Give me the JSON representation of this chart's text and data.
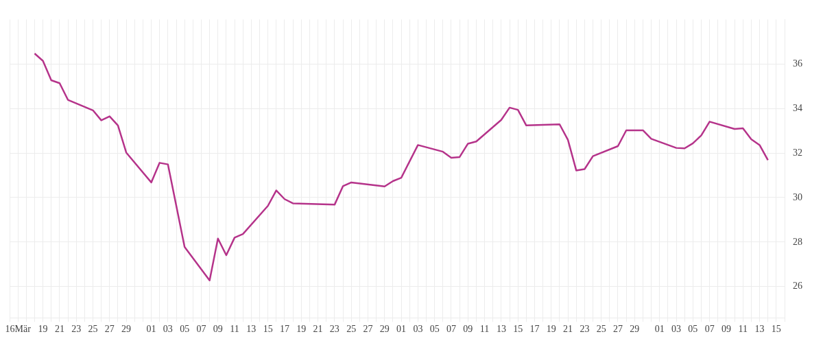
{
  "chart_data": {
    "type": "line",
    "x": [
      "--03-18",
      "--03-19",
      "--03-20",
      "--03-21",
      "--03-22",
      "--03-25",
      "--03-26",
      "--03-27",
      "--03-28",
      "--03-29",
      "--04-01",
      "--04-02",
      "--04-03",
      "--04-05",
      "--04-08",
      "--04-09",
      "--04-10",
      "--04-11",
      "--04-12",
      "--04-15",
      "--04-16",
      "--04-17",
      "--04-18",
      "--04-23",
      "--04-24",
      "--04-25",
      "--04-29",
      "--04-30",
      "--05-01",
      "--05-03",
      "--05-06",
      "--05-07",
      "--05-08",
      "--05-09",
      "--05-10",
      "--05-13",
      "--05-14",
      "--05-15",
      "--05-16",
      "--05-20",
      "--05-21",
      "--05-22",
      "--05-23",
      "--05-24",
      "--05-27",
      "--05-28",
      "--05-30",
      "--05-31",
      "--06-03",
      "--06-04",
      "--06-05",
      "--06-06",
      "--06-07",
      "--06-10",
      "--06-11",
      "--06-12",
      "--06-13",
      "--06-14"
    ],
    "series": [
      {
        "color": "#b5338a",
        "values": [
          36.47,
          36.14,
          35.27,
          35.14,
          34.39,
          33.92,
          33.47,
          33.65,
          33.24,
          32.02,
          30.68,
          31.56,
          31.49,
          27.78,
          26.28,
          28.16,
          27.41,
          28.2,
          28.36,
          29.63,
          30.32,
          29.93,
          29.74,
          29.68,
          30.51,
          30.68,
          30.5,
          30.74,
          30.89,
          32.36,
          32.06,
          31.79,
          31.82,
          32.42,
          32.52,
          33.49,
          34.04,
          33.94,
          33.24,
          33.29,
          32.59,
          31.22,
          31.28,
          31.86,
          32.31,
          33.02,
          33.02,
          32.64,
          32.23,
          32.21,
          32.44,
          32.79,
          33.41,
          33.08,
          33.11,
          32.62,
          32.36,
          31.68
        ]
      }
    ],
    "xlim": [
      "--03-15",
      "--06-16"
    ],
    "xticks": [
      {
        "value": "--03-15",
        "label": null
      },
      {
        "value": "--03-16",
        "label": "16Mär"
      },
      {
        "value": "--03-17",
        "label": null
      },
      {
        "value": "--03-18",
        "label": null
      },
      {
        "value": "--03-19",
        "label": "19"
      },
      {
        "value": "--03-20",
        "label": null
      },
      {
        "value": "--03-21",
        "label": "21"
      },
      {
        "value": "--03-22",
        "label": null
      },
      {
        "value": "--03-23",
        "label": "23"
      },
      {
        "value": "--03-24",
        "label": null
      },
      {
        "value": "--03-25",
        "label": "25"
      },
      {
        "value": "--03-26",
        "label": null
      },
      {
        "value": "--03-27",
        "label": "27"
      },
      {
        "value": "--03-28",
        "label": null
      },
      {
        "value": "--03-29",
        "label": "29"
      },
      {
        "value": "--03-30",
        "label": null
      },
      {
        "value": "--03-31",
        "label": null
      },
      {
        "value": "--04-01",
        "label": "01"
      },
      {
        "value": "--04-02",
        "label": null
      },
      {
        "value": "--04-03",
        "label": "03"
      },
      {
        "value": "--04-04",
        "label": null
      },
      {
        "value": "--04-05",
        "label": "05"
      },
      {
        "value": "--04-06",
        "label": null
      },
      {
        "value": "--04-07",
        "label": "07"
      },
      {
        "value": "--04-08",
        "label": null
      },
      {
        "value": "--04-09",
        "label": "09"
      },
      {
        "value": "--04-10",
        "label": null
      },
      {
        "value": "--04-11",
        "label": "11"
      },
      {
        "value": "--04-12",
        "label": null
      },
      {
        "value": "--04-13",
        "label": "13"
      },
      {
        "value": "--04-14",
        "label": null
      },
      {
        "value": "--04-15",
        "label": "15"
      },
      {
        "value": "--04-16",
        "label": null
      },
      {
        "value": "--04-17",
        "label": "17"
      },
      {
        "value": "--04-18",
        "label": null
      },
      {
        "value": "--04-19",
        "label": "19"
      },
      {
        "value": "--04-20",
        "label": null
      },
      {
        "value": "--04-21",
        "label": "21"
      },
      {
        "value": "--04-22",
        "label": null
      },
      {
        "value": "--04-23",
        "label": "23"
      },
      {
        "value": "--04-24",
        "label": null
      },
      {
        "value": "--04-25",
        "label": "25"
      },
      {
        "value": "--04-26",
        "label": null
      },
      {
        "value": "--04-27",
        "label": "27"
      },
      {
        "value": "--04-28",
        "label": null
      },
      {
        "value": "--04-29",
        "label": "29"
      },
      {
        "value": "--04-30",
        "label": null
      },
      {
        "value": "--05-01",
        "label": "01"
      },
      {
        "value": "--05-02",
        "label": null
      },
      {
        "value": "--05-03",
        "label": "03"
      },
      {
        "value": "--05-04",
        "label": null
      },
      {
        "value": "--05-05",
        "label": "05"
      },
      {
        "value": "--05-06",
        "label": null
      },
      {
        "value": "--05-07",
        "label": "07"
      },
      {
        "value": "--05-08",
        "label": null
      },
      {
        "value": "--05-09",
        "label": "09"
      },
      {
        "value": "--05-10",
        "label": null
      },
      {
        "value": "--05-11",
        "label": "11"
      },
      {
        "value": "--05-12",
        "label": null
      },
      {
        "value": "--05-13",
        "label": "13"
      },
      {
        "value": "--05-14",
        "label": null
      },
      {
        "value": "--05-15",
        "label": "15"
      },
      {
        "value": "--05-16",
        "label": null
      },
      {
        "value": "--05-17",
        "label": "17"
      },
      {
        "value": "--05-18",
        "label": null
      },
      {
        "value": "--05-19",
        "label": "19"
      },
      {
        "value": "--05-20",
        "label": null
      },
      {
        "value": "--05-21",
        "label": "21"
      },
      {
        "value": "--05-22",
        "label": null
      },
      {
        "value": "--05-23",
        "label": "23"
      },
      {
        "value": "--05-24",
        "label": null
      },
      {
        "value": "--05-25",
        "label": "25"
      },
      {
        "value": "--05-26",
        "label": null
      },
      {
        "value": "--05-27",
        "label": "27"
      },
      {
        "value": "--05-28",
        "label": null
      },
      {
        "value": "--05-29",
        "label": "29"
      },
      {
        "value": "--05-30",
        "label": null
      },
      {
        "value": "--05-31",
        "label": null
      },
      {
        "value": "--06-01",
        "label": "01"
      },
      {
        "value": "--06-02",
        "label": null
      },
      {
        "value": "--06-03",
        "label": "03"
      },
      {
        "value": "--06-04",
        "label": null
      },
      {
        "value": "--06-05",
        "label": "05"
      },
      {
        "value": "--06-06",
        "label": null
      },
      {
        "value": "--06-07",
        "label": "07"
      },
      {
        "value": "--06-08",
        "label": null
      },
      {
        "value": "--06-09",
        "label": "09"
      },
      {
        "value": "--06-10",
        "label": null
      },
      {
        "value": "--06-11",
        "label": "11"
      },
      {
        "value": "--06-12",
        "label": null
      },
      {
        "value": "--06-13",
        "label": "13"
      },
      {
        "value": "--06-14",
        "label": null
      },
      {
        "value": "--06-15",
        "label": "15"
      },
      {
        "value": "--06-16",
        "label": null
      }
    ],
    "ylim": [
      24.6,
      38
    ],
    "yticks": [
      26,
      28,
      30,
      32,
      34,
      36
    ],
    "grid": true
  }
}
